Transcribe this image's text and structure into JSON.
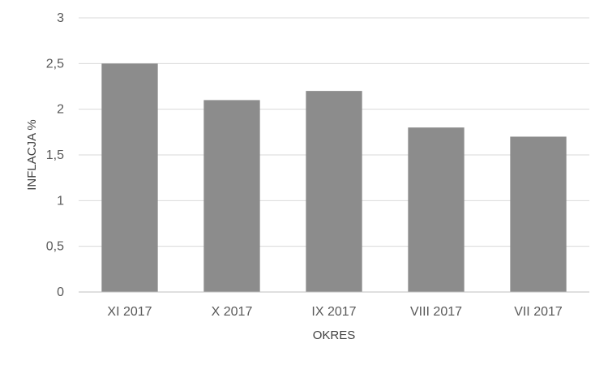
{
  "chart_data": {
    "type": "bar",
    "title": "",
    "xlabel": "OKRES",
    "ylabel": "INFLACJA %",
    "categories": [
      "XI 2017",
      "X 2017",
      "IX 2017",
      "VIII 2017",
      "VII 2017"
    ],
    "values": [
      2.5,
      2.1,
      2.2,
      1.8,
      1.7
    ],
    "ylim": [
      0,
      3
    ],
    "yticks": [
      0,
      0.5,
      1,
      1.5,
      2,
      2.5,
      3
    ],
    "ytick_labels": [
      "0",
      "0,5",
      "1",
      "1,5",
      "2",
      "2,5",
      "3"
    ],
    "grid": true,
    "legend": "none",
    "colors": {
      "bar": "#8c8c8c",
      "grid": "#d9d9d9",
      "axis": "#bfbfbf"
    }
  }
}
